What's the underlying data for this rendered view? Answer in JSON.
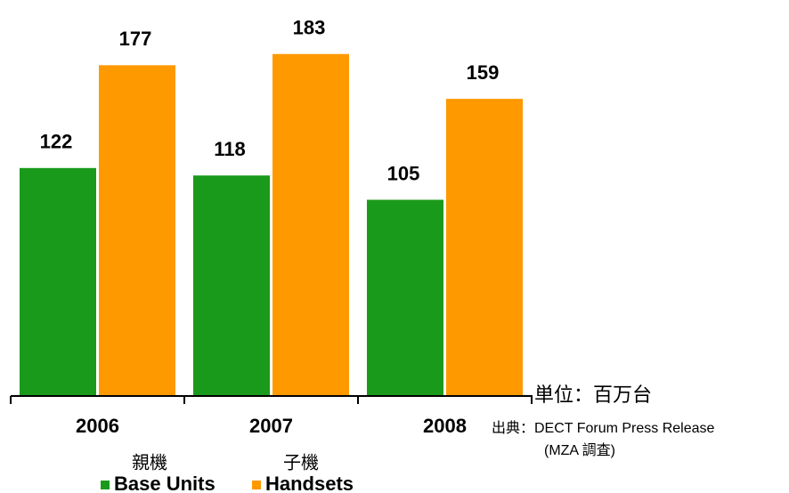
{
  "chart_data": {
    "type": "bar",
    "categories": [
      "2006",
      "2007",
      "2008"
    ],
    "series": [
      {
        "name": "Base Units",
        "name_ja": "親機",
        "color": "#1a9a1a",
        "values": [
          122,
          118,
          105
        ]
      },
      {
        "name": "Handsets",
        "name_ja": "子機",
        "color": "#ff9900",
        "values": [
          177,
          183,
          159
        ]
      }
    ],
    "unit_note": "単位：百万台",
    "source": [
      "出典：DECT Forum Press Release",
      "(MZA 調査)"
    ],
    "legend": "bottom"
  }
}
